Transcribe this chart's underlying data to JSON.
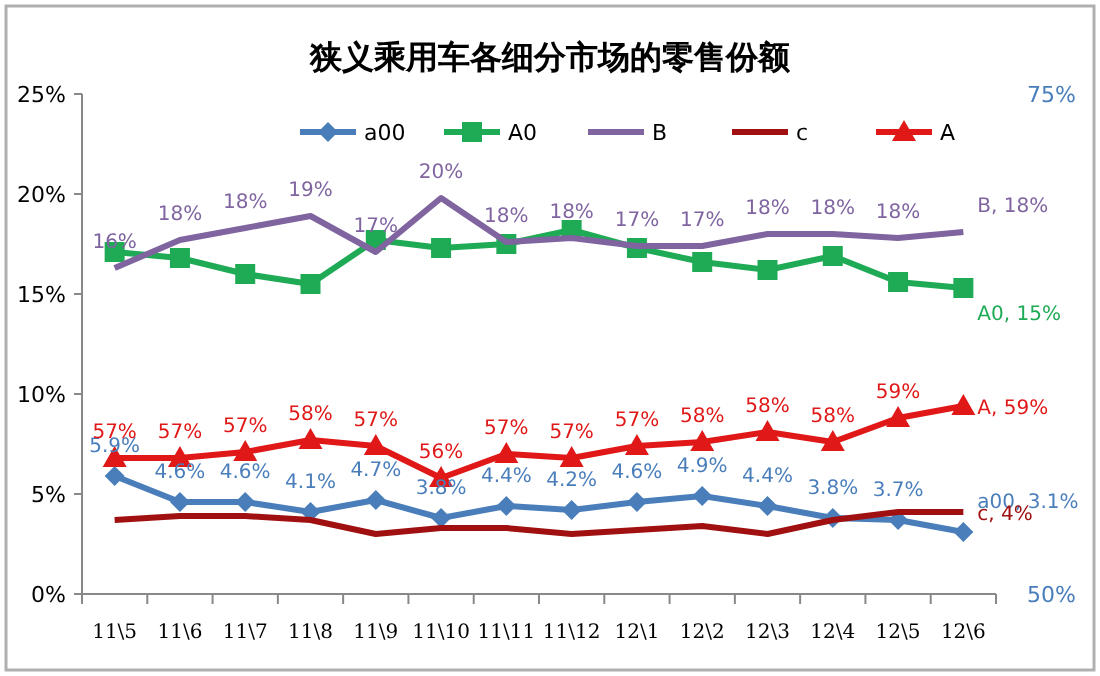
{
  "chart_data": {
    "type": "line",
    "title": "狭义乘用车各细分市场的零售份额",
    "categories": [
      "11\\5",
      "11\\6",
      "11\\7",
      "11\\8",
      "11\\9",
      "11\\10",
      "11\\11",
      "11\\12",
      "12\\1",
      "12\\2",
      "12\\3",
      "12\\4",
      "12\\5",
      "12\\6"
    ],
    "series": [
      {
        "name": "a00",
        "color": "#4a7ebb",
        "marker": "diamond",
        "values": [
          5.9,
          4.6,
          4.6,
          4.1,
          4.7,
          3.8,
          4.4,
          4.2,
          4.6,
          4.9,
          4.4,
          3.8,
          3.7,
          3.1
        ],
        "value_labels": [
          "5.9%",
          "4.6%",
          "4.6%",
          "4.1%",
          "4.7%",
          "3.8%",
          "4.4%",
          "4.2%",
          "4.6%",
          "4.9%",
          "4.4%",
          "3.8%",
          "3.7%",
          "a00, 3.1%"
        ]
      },
      {
        "name": "A0",
        "color": "#1faa55",
        "marker": "square",
        "values": [
          17.1,
          16.8,
          16.0,
          15.5,
          17.7,
          17.3,
          17.5,
          18.2,
          17.3,
          16.6,
          16.2,
          16.9,
          15.6,
          15.3
        ],
        "value_labels": [
          null,
          null,
          null,
          null,
          null,
          null,
          null,
          null,
          null,
          null,
          null,
          null,
          null,
          "A0, 15%"
        ]
      },
      {
        "name": "B",
        "color": "#7f64a0",
        "marker": "none",
        "values": [
          16.3,
          17.7,
          18.3,
          18.9,
          17.1,
          19.8,
          17.6,
          17.8,
          17.4,
          17.4,
          18.0,
          18.0,
          17.8,
          18.1
        ],
        "value_labels": [
          "16%",
          "18%",
          "18%",
          "19%",
          "17%",
          "20%",
          "18%",
          "18%",
          "17%",
          "17%",
          "18%",
          "18%",
          "18%",
          "B, 18%"
        ]
      },
      {
        "name": "c",
        "color": "#a01010",
        "marker": "none",
        "values": [
          3.7,
          3.9,
          3.9,
          3.7,
          3.0,
          3.3,
          3.3,
          3.0,
          3.2,
          3.4,
          3.0,
          3.7,
          4.1,
          4.1
        ],
        "value_labels": [
          null,
          null,
          null,
          null,
          null,
          null,
          null,
          null,
          null,
          null,
          null,
          null,
          null,
          "c, 4%"
        ]
      },
      {
        "name": "A",
        "color": "#e01818",
        "marker": "triangle",
        "axis": "y2",
        "values": [
          56.8,
          56.8,
          57.1,
          57.7,
          57.4,
          55.8,
          57.0,
          56.8,
          57.4,
          57.6,
          58.1,
          57.6,
          58.8,
          59.4
        ],
        "value_labels": [
          "57%",
          "57%",
          "57%",
          "58%",
          "57%",
          "56%",
          "57%",
          "57%",
          "57%",
          "58%",
          "58%",
          "58%",
          "59%",
          "A, 59%"
        ]
      }
    ],
    "ylim": [
      0,
      25
    ],
    "yticks": [
      {
        "value": 0,
        "label": "0%"
      },
      {
        "value": 5,
        "label": "5%"
      },
      {
        "value": 10,
        "label": "10%"
      },
      {
        "value": 15,
        "label": "15%"
      },
      {
        "value": 20,
        "label": "20%"
      },
      {
        "value": 25,
        "label": "25%"
      }
    ],
    "y2lim": [
      50,
      75
    ],
    "y2ticks": [
      {
        "value": 50,
        "label": "50%"
      },
      {
        "value": 75,
        "label": "75%"
      }
    ],
    "legend": "top",
    "grid": false
  }
}
